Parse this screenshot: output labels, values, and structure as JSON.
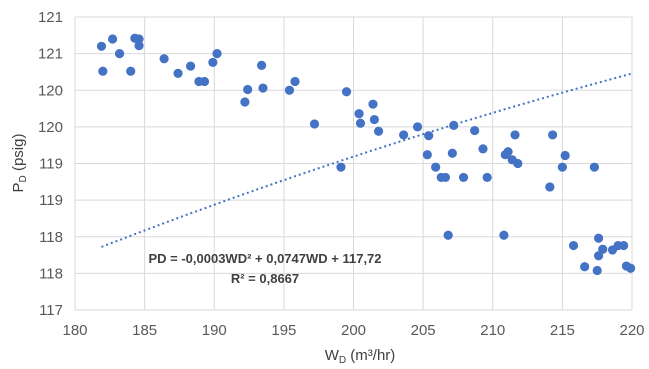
{
  "chart_data": {
    "type": "scatter",
    "xlabel": "W",
    "xlabel_sub": "D",
    "xlabel_unit": " (m³/hr)",
    "ylabel": "P",
    "ylabel_sub": "D",
    "ylabel_unit": " (psig)",
    "xlim": [
      180,
      220
    ],
    "ylim": [
      117,
      121
    ],
    "x_ticks": [
      180,
      185,
      190,
      195,
      200,
      205,
      210,
      215,
      220
    ],
    "y_ticks": [
      117,
      117.5,
      118,
      118.5,
      119,
      119.5,
      120,
      120.5,
      121
    ],
    "y_tick_labels": [
      "117",
      "118",
      "118",
      "119",
      "119",
      "120",
      "120",
      "121",
      "121"
    ],
    "grid": true,
    "trendline": {
      "type": "polynomial",
      "color": "#4472C4",
      "coefficients": [
        -0.0003,
        0.0747,
        117.72
      ],
      "equation_line1": "PD = -0,0003WD² + 0,0747WD + 117,72",
      "equation_line2": "R² = 0,8667"
    },
    "marker_color": "#4472C4",
    "x": [
      181.9,
      182.0,
      182.7,
      183.2,
      184.0,
      184.3,
      184.6,
      184.6,
      186.4,
      187.4,
      188.3,
      188.9,
      189.3,
      189.9,
      190.2,
      192.2,
      192.4,
      193.4,
      193.5,
      195.4,
      195.8,
      197.2,
      199.1,
      199.5,
      200.4,
      200.5,
      201.4,
      201.5,
      201.8,
      203.6,
      204.6,
      205.3,
      205.4,
      205.9,
      206.3,
      206.6,
      206.8,
      207.1,
      207.2,
      207.9,
      208.7,
      209.3,
      209.6,
      210.8,
      210.9,
      211.1,
      211.4,
      211.6,
      211.8,
      214.1,
      214.3,
      215.0,
      215.2,
      215.8,
      216.6,
      217.3,
      217.5,
      217.6,
      217.6,
      217.9,
      218.6,
      219.0,
      219.4,
      219.6,
      219.9
    ],
    "y": [
      120.6,
      120.26,
      120.7,
      120.5,
      120.26,
      120.71,
      120.61,
      120.7,
      120.43,
      120.23,
      120.33,
      120.12,
      120.12,
      120.38,
      120.5,
      119.84,
      120.01,
      120.34,
      120.03,
      120.0,
      120.12,
      119.54,
      118.95,
      119.98,
      119.68,
      119.55,
      119.81,
      119.6,
      119.44,
      119.39,
      119.5,
      119.12,
      119.38,
      118.95,
      118.81,
      118.81,
      118.02,
      119.14,
      119.52,
      118.81,
      119.45,
      119.2,
      118.81,
      118.02,
      119.12,
      119.16,
      119.05,
      119.39,
      119.0,
      118.68,
      119.39,
      118.95,
      119.11,
      117.88,
      117.59,
      118.95,
      117.54,
      117.98,
      117.74,
      117.83,
      117.82,
      117.88,
      117.88,
      117.6,
      117.57
    ]
  }
}
